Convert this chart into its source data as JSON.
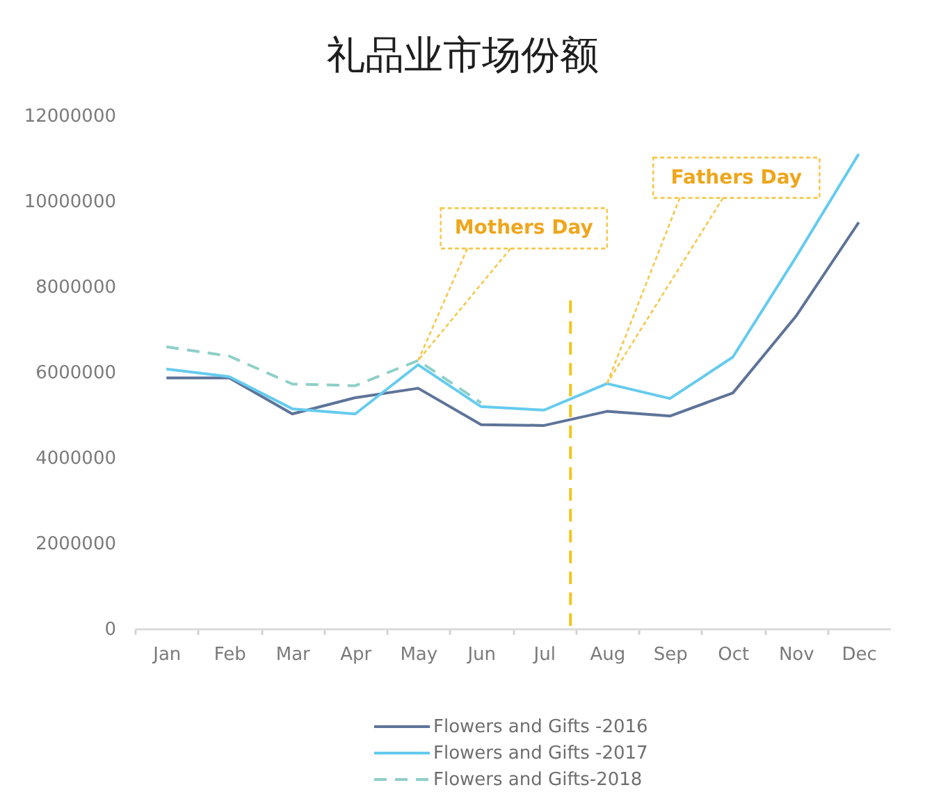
{
  "chart_data": {
    "type": "line",
    "title": "礼品业市场份额",
    "categories": [
      "Jan",
      "Feb",
      "Mar",
      "Apr",
      "May",
      "Jun",
      "Jul",
      "Aug",
      "Sep",
      "Oct",
      "Nov",
      "Dec"
    ],
    "ylim": [
      0,
      12000000
    ],
    "yticks": [
      0,
      2000000,
      4000000,
      6000000,
      8000000,
      10000000,
      12000000
    ],
    "series": [
      {
        "name": "Flowers and Gifts -2016",
        "color": "#5d7399",
        "values": [
          5860000,
          5860000,
          5020000,
          5400000,
          5620000,
          4770000,
          4750000,
          5080000,
          4970000,
          5510000,
          7300000,
          9500000
        ]
      },
      {
        "name": "Flowers and Gifts -2017",
        "color": "#65cbee",
        "values": [
          6070000,
          5890000,
          5140000,
          5020000,
          6170000,
          5190000,
          5110000,
          5730000,
          5380000,
          6350000,
          8680000,
          11100000
        ]
      },
      {
        "name": "Flowers and Gifts-2018",
        "color": "#8fcfc8",
        "line_style": "dashed",
        "values": [
          6590000,
          6370000,
          5720000,
          5680000,
          6270000,
          5280000,
          null,
          null,
          null,
          null,
          null,
          null
        ]
      }
    ],
    "ref_lines": [
      {
        "axis": "x",
        "value": "Jul",
        "color": "#f5c518",
        "line_style": "dashed"
      }
    ],
    "annotations": [
      {
        "text": "Mothers Day",
        "x": "May",
        "y": 6270000
      },
      {
        "text": "Fathers Day",
        "x": "Aug",
        "y": 5730000
      }
    ],
    "legend": "bottom"
  }
}
